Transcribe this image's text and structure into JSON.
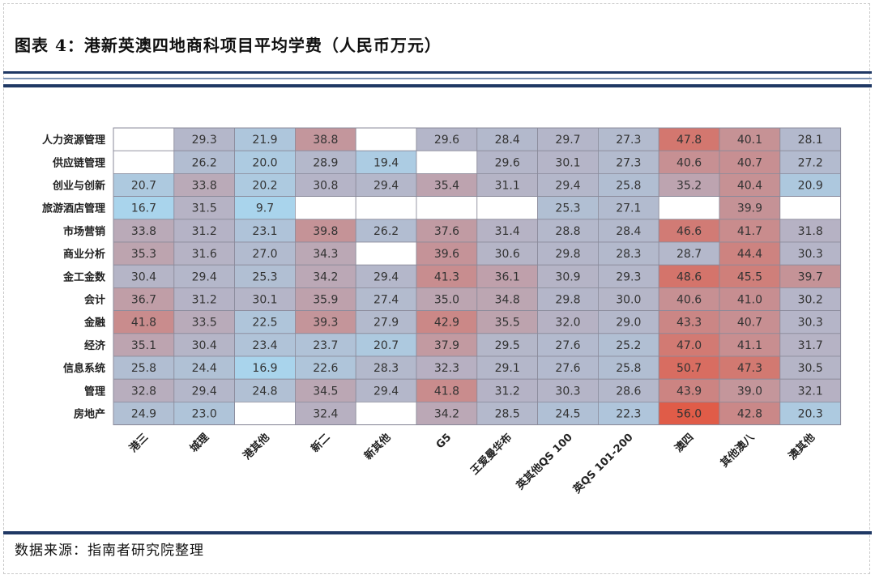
{
  "header": {
    "title": "图表 4：港新英澳四地商科项目平均学费（人民币万元）"
  },
  "footer": {
    "source": "数据来源：指南者研究院整理"
  },
  "chart_data": {
    "type": "heatmap",
    "unit": "人民币万元",
    "columns": [
      "港三",
      "城理",
      "港其他",
      "新二",
      "新其他",
      "G5",
      "王爱曼华布",
      "英其他QS 100",
      "英QS 101-200",
      "澳四",
      "其他澳八",
      "澳其他"
    ],
    "rows": [
      "人力资源管理",
      "供应链管理",
      "创业与创新",
      "旅游酒店管理",
      "市场营销",
      "商业分析",
      "金工金数",
      "会计",
      "金融",
      "经济",
      "信息系统",
      "管理",
      "房地产"
    ],
    "values": [
      [
        null,
        29.3,
        21.9,
        38.8,
        null,
        29.6,
        28.4,
        29.7,
        27.3,
        47.8,
        40.1,
        28.1
      ],
      [
        null,
        26.2,
        20.0,
        28.9,
        19.4,
        null,
        29.6,
        30.1,
        27.3,
        40.6,
        40.7,
        27.2
      ],
      [
        20.7,
        33.8,
        20.2,
        30.8,
        29.4,
        35.4,
        31.1,
        29.4,
        25.8,
        35.2,
        40.4,
        20.9
      ],
      [
        16.7,
        31.5,
        9.7,
        null,
        null,
        null,
        null,
        25.3,
        27.1,
        null,
        39.9,
        null
      ],
      [
        33.8,
        31.2,
        23.1,
        39.8,
        26.2,
        37.6,
        31.4,
        28.8,
        28.4,
        46.6,
        41.7,
        31.8
      ],
      [
        35.3,
        31.6,
        27.0,
        34.3,
        null,
        39.6,
        30.6,
        29.8,
        28.3,
        28.7,
        44.4,
        30.3
      ],
      [
        30.4,
        29.4,
        25.3,
        34.2,
        29.4,
        41.3,
        36.1,
        30.9,
        29.3,
        48.6,
        45.5,
        39.7
      ],
      [
        36.7,
        31.2,
        30.1,
        35.9,
        27.4,
        35.0,
        34.8,
        29.8,
        30.0,
        40.6,
        41.0,
        30.2
      ],
      [
        41.8,
        33.5,
        22.5,
        39.3,
        27.9,
        42.9,
        35.5,
        32.0,
        29.0,
        43.3,
        40.7,
        30.3
      ],
      [
        35.1,
        30.4,
        23.4,
        23.7,
        20.7,
        37.9,
        29.5,
        27.6,
        25.2,
        47.0,
        41.1,
        31.7
      ],
      [
        25.8,
        24.4,
        16.9,
        22.6,
        28.3,
        32.3,
        29.1,
        27.6,
        25.8,
        50.7,
        47.3,
        30.5
      ],
      [
        32.8,
        29.4,
        24.8,
        34.5,
        29.4,
        41.8,
        31.2,
        30.3,
        28.6,
        43.9,
        39.0,
        32.1
      ],
      [
        24.9,
        23.0,
        null,
        32.4,
        null,
        34.2,
        28.5,
        24.5,
        22.3,
        56.0,
        42.8,
        20.3
      ]
    ],
    "color_scale": {
      "low": "#a9d4ec",
      "mid": "#b6b2c4",
      "high": "#e05c48"
    },
    "legend": "none"
  }
}
